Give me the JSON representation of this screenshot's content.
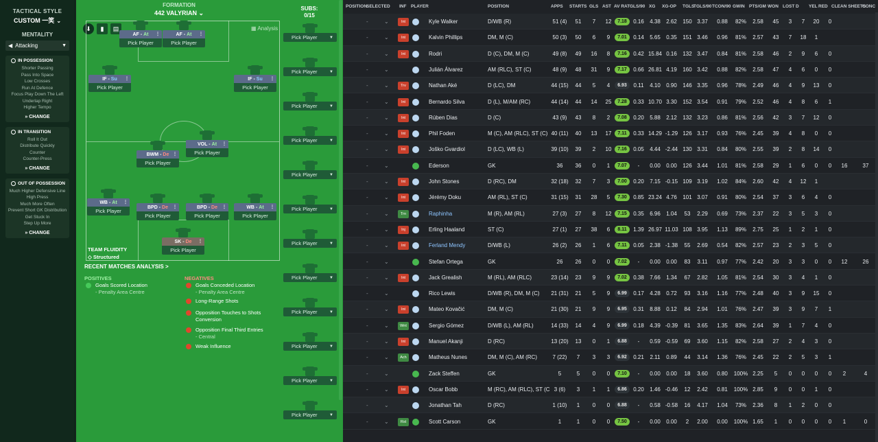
{
  "left": {
    "title": "TACTICAL STYLE",
    "style": "CUSTOM 一笑",
    "mentality_label": "MENTALITY",
    "mentality": "Attacking",
    "sections": [
      {
        "title": "IN POSSESSION",
        "items": [
          "Shorter Passing",
          "Pass Into Space",
          "Low Crosses",
          "Run At Defence",
          "Focus Play Down The Left",
          "Underlap Right",
          "Higher Tempo"
        ],
        "change": "CHANGE"
      },
      {
        "title": "IN TRANSITION",
        "items": [
          "Roll It Out",
          "Distribute Quickly",
          "Counter",
          "Counter-Press"
        ],
        "change": "CHANGE"
      },
      {
        "title": "OUT OF POSSESSION",
        "items": [
          "Much Higher Defensive Line",
          "High Press",
          "Much More Often",
          "Prevent Short GK Distribution",
          "Get Stuck In",
          "Step Up More"
        ],
        "change": "CHANGE"
      }
    ]
  },
  "pitch": {
    "formation_label": "FORMATION",
    "formation": "442 VALYRIAN",
    "subs_label": "SUBS:",
    "subs_count": "0/15",
    "analysis": "Analysis",
    "pick_label": "Pick Player",
    "fluidity_label": "TEAM FLUIDITY",
    "fluidity": "Structured",
    "recent": "RECENT MATCHES ANALYSIS >",
    "positives_h": "POSITIVES",
    "negatives_h": "NEGATIVES",
    "positives": [
      {
        "t": "Goals Scored Location",
        "d": "- Penalty Area Centre"
      }
    ],
    "negatives": [
      {
        "t": "Goals Conceded Location",
        "d": "- Penalty Area Centre"
      },
      {
        "t": "Long-Range Shots",
        "d": ""
      },
      {
        "t": "Opposition Touches to Shots Conversion",
        "d": ""
      },
      {
        "t": "Opposition Final Third Entries",
        "d": "- Central"
      },
      {
        "t": "Weak Influence",
        "d": ""
      }
    ],
    "roles": [
      {
        "r": "AF",
        "d": "At",
        "m": "at"
      },
      {
        "r": "AF",
        "d": "At",
        "m": "at"
      },
      {
        "r": "IF",
        "d": "Su",
        "m": "su"
      },
      {
        "r": "IF",
        "d": "Su",
        "m": "su"
      },
      {
        "r": "VOL",
        "d": "At",
        "m": "at"
      },
      {
        "r": "BWM",
        "d": "De",
        "m": "de"
      },
      {
        "r": "WB",
        "d": "At",
        "m": "at"
      },
      {
        "r": "BPD",
        "d": "De",
        "m": "de"
      },
      {
        "r": "BPD",
        "d": "De",
        "m": "de"
      },
      {
        "r": "WB",
        "d": "At",
        "m": "at"
      },
      {
        "r": "SK",
        "d": "De",
        "m": "de"
      }
    ]
  },
  "table": {
    "headers": [
      "POSITION",
      "SELECTED",
      "INF",
      "PLAYER",
      "POSITION",
      "APPS",
      "STARTS",
      "GLS",
      "AST",
      "AV RAT",
      "GLS/90",
      "XG",
      "XG-OP",
      "TGLS",
      "TGLS/90",
      "TCON/90",
      "GWIN",
      "PTS/GM",
      "WON",
      "LOST",
      "D",
      "YEL",
      "RED",
      "CLEAN SHEETS",
      "CONC"
    ],
    "rows": [
      {
        "inf": "Int",
        "ic": "red",
        "name": "Kyle Walker",
        "pos": "D/WB (R)",
        "apps": "51 (4)",
        "starts": "51",
        "gls": "7",
        "ast": "12",
        "rat": "7.18",
        "rc": "g",
        "g90": "0.16",
        "xg": "4.38",
        "xgop": "2.62",
        "tgls": "150",
        "tgls90": "3.37",
        "tcon": "0.88",
        "gwin": "82%",
        "pts": "2.58",
        "won": "45",
        "lost": "3",
        "d": "7",
        "yel": "20",
        "red": "0",
        "cs": "",
        "conc": ""
      },
      {
        "inf": "Int",
        "ic": "red",
        "name": "Kalvin Phillips",
        "pos": "DM, M (C)",
        "apps": "50 (3)",
        "starts": "50",
        "gls": "6",
        "ast": "9",
        "rat": "7.01",
        "rc": "g",
        "g90": "0.14",
        "xg": "5.65",
        "xgop": "0.35",
        "tgls": "151",
        "tgls90": "3.46",
        "tcon": "0.96",
        "gwin": "81%",
        "pts": "2.57",
        "won": "43",
        "lost": "7",
        "d": "18",
        "yel": "1",
        "red": "",
        "cs": "",
        "conc": ""
      },
      {
        "inf": "Int",
        "ic": "red",
        "name": "Rodri",
        "pos": "D (C), DM, M (C)",
        "apps": "49 (8)",
        "starts": "49",
        "gls": "16",
        "ast": "8",
        "rat": "7.16",
        "rc": "g",
        "g90": "0.42",
        "xg": "15.84",
        "xgop": "0.16",
        "tgls": "132",
        "tgls90": "3.47",
        "tcon": "0.84",
        "gwin": "81%",
        "pts": "2.58",
        "won": "46",
        "lost": "2",
        "d": "9",
        "yel": "6",
        "red": "0",
        "cs": "",
        "conc": ""
      },
      {
        "inf": "",
        "ic": "",
        "name": "Julián Álvarez",
        "pos": "AM (RLC), ST (C)",
        "apps": "48 (9)",
        "starts": "48",
        "gls": "31",
        "ast": "9",
        "rat": "7.17",
        "rc": "g",
        "g90": "0.66",
        "xg": "26.81",
        "xgop": "4.19",
        "tgls": "160",
        "tgls90": "3.42",
        "tcon": "0.88",
        "gwin": "82%",
        "pts": "2.58",
        "won": "47",
        "lost": "4",
        "d": "6",
        "yel": "0",
        "red": "0",
        "cs": "",
        "conc": ""
      },
      {
        "inf": "Trv",
        "ic": "red",
        "name": "Nathan Aké",
        "pos": "D (LC), DM",
        "apps": "44 (15)",
        "starts": "44",
        "gls": "5",
        "ast": "4",
        "rat": "6.93",
        "rc": "d",
        "g90": "0.11",
        "xg": "4.10",
        "xgop": "0.90",
        "tgls": "146",
        "tgls90": "3.35",
        "tcon": "0.96",
        "gwin": "78%",
        "pts": "2.49",
        "won": "46",
        "lost": "4",
        "d": "9",
        "yel": "13",
        "red": "0",
        "cs": "",
        "conc": ""
      },
      {
        "inf": "Int",
        "ic": "red",
        "name": "Bernardo Silva",
        "pos": "D (L), M/AM (RC)",
        "apps": "44 (14)",
        "starts": "44",
        "gls": "14",
        "ast": "25",
        "rat": "7.28",
        "rc": "g",
        "g90": "0.33",
        "xg": "10.70",
        "xgop": "3.30",
        "tgls": "152",
        "tgls90": "3.54",
        "tcon": "0.91",
        "gwin": "79%",
        "pts": "2.52",
        "won": "46",
        "lost": "4",
        "d": "8",
        "yel": "6",
        "red": "1",
        "cs": "",
        "conc": ""
      },
      {
        "inf": "Int",
        "ic": "red",
        "name": "Rúben Dias",
        "pos": "D (C)",
        "apps": "43 (9)",
        "starts": "43",
        "gls": "8",
        "ast": "2",
        "rat": "7.08",
        "rc": "g",
        "g90": "0.20",
        "xg": "5.88",
        "xgop": "2.12",
        "tgls": "132",
        "tgls90": "3.23",
        "tcon": "0.86",
        "gwin": "81%",
        "pts": "2.56",
        "won": "42",
        "lost": "3",
        "d": "7",
        "yel": "12",
        "red": "0",
        "cs": "",
        "conc": ""
      },
      {
        "inf": "Int",
        "ic": "red",
        "name": "Phil Foden",
        "pos": "M (C), AM (RLC), ST (C)",
        "apps": "40 (11)",
        "starts": "40",
        "gls": "13",
        "ast": "17",
        "rat": "7.11",
        "rc": "g",
        "g90": "0.33",
        "xg": "14.29",
        "xgop": "-1.29",
        "tgls": "126",
        "tgls90": "3.17",
        "tcon": "0.93",
        "gwin": "76%",
        "pts": "2.45",
        "won": "39",
        "lost": "4",
        "d": "8",
        "yel": "0",
        "red": "0",
        "cs": "",
        "conc": ""
      },
      {
        "inf": "Int",
        "ic": "red",
        "name": "Joško Gvardiol",
        "pos": "D (LC), WB (L)",
        "apps": "39 (10)",
        "starts": "39",
        "gls": "2",
        "ast": "10",
        "rat": "7.16",
        "rc": "g",
        "g90": "0.05",
        "xg": "4.44",
        "xgop": "-2.44",
        "tgls": "130",
        "tgls90": "3.31",
        "tcon": "0.84",
        "gwin": "80%",
        "pts": "2.55",
        "won": "39",
        "lost": "2",
        "d": "8",
        "yel": "14",
        "red": "0",
        "cs": "",
        "conc": ""
      },
      {
        "inf": "",
        "ic": "",
        "gk": true,
        "name": "Ederson",
        "pos": "GK",
        "apps": "36",
        "starts": "36",
        "gls": "0",
        "ast": "1",
        "rat": "7.07",
        "rc": "g",
        "g90": "-",
        "xg": "0.00",
        "xgop": "0.00",
        "tgls": "126",
        "tgls90": "3.44",
        "tcon": "1.01",
        "gwin": "81%",
        "pts": "2.58",
        "won": "29",
        "lost": "1",
        "d": "6",
        "yel": "0",
        "red": "0",
        "cs": "16",
        "conc": "37"
      },
      {
        "inf": "Int",
        "ic": "red",
        "name": "John Stones",
        "pos": "D (RC), DM",
        "apps": "32 (18)",
        "starts": "32",
        "gls": "7",
        "ast": "3",
        "rat": "7.00",
        "rc": "g",
        "g90": "0.20",
        "xg": "7.15",
        "xgop": "-0.15",
        "tgls": "109",
        "tgls90": "3.19",
        "tcon": "1.02",
        "gwin": "84%",
        "pts": "2.60",
        "won": "42",
        "lost": "4",
        "d": "12",
        "yel": "1",
        "red": "",
        "cs": "",
        "conc": ""
      },
      {
        "inf": "Int",
        "ic": "red",
        "name": "Jérémy Doku",
        "pos": "AM (RL), ST (C)",
        "apps": "31 (15)",
        "starts": "31",
        "gls": "28",
        "ast": "5",
        "rat": "7.30",
        "rc": "g",
        "g90": "0.85",
        "xg": "23.24",
        "xgop": "4.76",
        "tgls": "101",
        "tgls90": "3.07",
        "tcon": "0.91",
        "gwin": "80%",
        "pts": "2.54",
        "won": "37",
        "lost": "3",
        "d": "6",
        "yel": "4",
        "red": "0",
        "cs": "",
        "conc": ""
      },
      {
        "inf": "Trn",
        "ic": "green",
        "link": true,
        "name": "Raphinha",
        "pos": "M (R), AM (RL)",
        "apps": "27 (3)",
        "starts": "27",
        "gls": "8",
        "ast": "12",
        "rat": "7.15",
        "rc": "g",
        "g90": "0.35",
        "xg": "6.96",
        "xgop": "1.04",
        "tgls": "53",
        "tgls90": "2.29",
        "tcon": "0.69",
        "gwin": "73%",
        "pts": "2.37",
        "won": "22",
        "lost": "3",
        "d": "5",
        "yel": "3",
        "red": "0",
        "cs": "",
        "conc": ""
      },
      {
        "inf": "Inj",
        "ic": "red",
        "name": "Erling Haaland",
        "pos": "ST (C)",
        "apps": "27 (1)",
        "starts": "27",
        "gls": "38",
        "ast": "6",
        "rat": "8.11",
        "rc": "g",
        "g90": "1.39",
        "xg": "26.97",
        "xgop": "11.03",
        "tgls": "108",
        "tgls90": "3.95",
        "tcon": "1.13",
        "gwin": "89%",
        "pts": "2.75",
        "won": "25",
        "lost": "1",
        "d": "2",
        "yel": "1",
        "red": "0",
        "cs": "",
        "conc": ""
      },
      {
        "inf": "Int",
        "ic": "red",
        "link": true,
        "name": "Ferland Mendy",
        "pos": "D/WB (L)",
        "apps": "26 (2)",
        "starts": "26",
        "gls": "1",
        "ast": "6",
        "rat": "7.11",
        "rc": "g",
        "g90": "0.05",
        "xg": "2.38",
        "xgop": "-1.38",
        "tgls": "55",
        "tgls90": "2.69",
        "tcon": "0.54",
        "gwin": "82%",
        "pts": "2.57",
        "won": "23",
        "lost": "2",
        "d": "3",
        "yel": "5",
        "red": "0",
        "cs": "",
        "conc": ""
      },
      {
        "inf": "",
        "ic": "",
        "gk": true,
        "name": "Stefan Ortega",
        "pos": "GK",
        "apps": "26",
        "starts": "26",
        "gls": "0",
        "ast": "0",
        "rat": "7.02",
        "rc": "g",
        "g90": "-",
        "xg": "0.00",
        "xgop": "0.00",
        "tgls": "83",
        "tgls90": "3.11",
        "tcon": "0.97",
        "gwin": "77%",
        "pts": "2.42",
        "won": "20",
        "lost": "3",
        "d": "3",
        "yel": "0",
        "red": "0",
        "cs": "12",
        "conc": "26"
      },
      {
        "inf": "Int",
        "ic": "red",
        "name": "Jack Grealish",
        "pos": "M (RL), AM (RLC)",
        "apps": "23 (14)",
        "starts": "23",
        "gls": "9",
        "ast": "9",
        "rat": "7.02",
        "rc": "g",
        "g90": "0.38",
        "xg": "7.66",
        "xgop": "1.34",
        "tgls": "67",
        "tgls90": "2.82",
        "tcon": "1.05",
        "gwin": "81%",
        "pts": "2.54",
        "won": "30",
        "lost": "3",
        "d": "4",
        "yel": "1",
        "red": "0",
        "cs": "",
        "conc": ""
      },
      {
        "inf": "",
        "ic": "",
        "name": "Rico Lewis",
        "pos": "D/WB (R), DM, M (C)",
        "apps": "21 (31)",
        "starts": "21",
        "gls": "5",
        "ast": "9",
        "rat": "6.99",
        "rc": "d",
        "g90": "0.17",
        "xg": "4.28",
        "xgop": "0.72",
        "tgls": "93",
        "tgls90": "3.16",
        "tcon": "1.16",
        "gwin": "77%",
        "pts": "2.48",
        "won": "40",
        "lost": "3",
        "d": "9",
        "yel": "15",
        "red": "0",
        "cs": "",
        "conc": ""
      },
      {
        "inf": "Int",
        "ic": "red",
        "name": "Mateo Kovačić",
        "pos": "DM, M (C)",
        "apps": "21 (30)",
        "starts": "21",
        "gls": "9",
        "ast": "9",
        "rat": "6.95",
        "rc": "d",
        "g90": "0.31",
        "xg": "8.88",
        "xgop": "0.12",
        "tgls": "84",
        "tgls90": "2.94",
        "tcon": "1.01",
        "gwin": "76%",
        "pts": "2.47",
        "won": "39",
        "lost": "3",
        "d": "9",
        "yel": "7",
        "red": "1",
        "cs": "",
        "conc": ""
      },
      {
        "inf": "Wnt",
        "ic": "green",
        "name": "Sergio Gómez",
        "pos": "D/WB (L), AM (RL)",
        "apps": "14 (33)",
        "starts": "14",
        "gls": "4",
        "ast": "9",
        "rat": "6.99",
        "rc": "d",
        "g90": "0.18",
        "xg": "4.39",
        "xgop": "-0.39",
        "tgls": "81",
        "tgls90": "3.65",
        "tcon": "1.35",
        "gwin": "83%",
        "pts": "2.64",
        "won": "39",
        "lost": "1",
        "d": "7",
        "yel": "4",
        "red": "0",
        "cs": "",
        "conc": ""
      },
      {
        "inf": "Int",
        "ic": "red",
        "name": "Manuel Akanji",
        "pos": "D (RC)",
        "apps": "13 (20)",
        "starts": "13",
        "gls": "0",
        "ast": "1",
        "rat": "6.88",
        "rc": "d",
        "g90": "-",
        "xg": "0.59",
        "xgop": "-0.59",
        "tgls": "69",
        "tgls90": "3.60",
        "tcon": "1.15",
        "gwin": "82%",
        "pts": "2.58",
        "won": "27",
        "lost": "2",
        "d": "4",
        "yel": "3",
        "red": "0",
        "cs": "",
        "conc": ""
      },
      {
        "inf": "Ach",
        "ic": "green",
        "name": "Matheus Nunes",
        "pos": "DM, M (C), AM (RC)",
        "apps": "7 (22)",
        "starts": "7",
        "gls": "3",
        "ast": "3",
        "rat": "6.92",
        "rc": "d",
        "g90": "0.21",
        "xg": "2.11",
        "xgop": "0.89",
        "tgls": "44",
        "tgls90": "3.14",
        "tcon": "1.36",
        "gwin": "76%",
        "pts": "2.45",
        "won": "22",
        "lost": "2",
        "d": "5",
        "yel": "3",
        "red": "1",
        "cs": "",
        "conc": ""
      },
      {
        "inf": "",
        "ic": "",
        "gk": true,
        "name": "Zack Steffen",
        "pos": "GK",
        "apps": "5",
        "starts": "5",
        "gls": "0",
        "ast": "0",
        "rat": "7.10",
        "rc": "g",
        "g90": "-",
        "xg": "0.00",
        "xgop": "0.00",
        "tgls": "18",
        "tgls90": "3.60",
        "tcon": "0.80",
        "gwin": "100%",
        "pts": "2.25",
        "won": "5",
        "lost": "0",
        "d": "0",
        "yel": "0",
        "red": "0",
        "cs": "2",
        "conc": "4"
      },
      {
        "inf": "Int",
        "ic": "red",
        "name": "Oscar Bobb",
        "pos": "M (RC), AM (RLC), ST (C)",
        "apps": "3 (6)",
        "starts": "3",
        "gls": "1",
        "ast": "1",
        "rat": "6.86",
        "rc": "d",
        "g90": "0.20",
        "xg": "1.46",
        "xgop": "-0.46",
        "tgls": "12",
        "tgls90": "2.42",
        "tcon": "0.81",
        "gwin": "100%",
        "pts": "2.85",
        "won": "9",
        "lost": "0",
        "d": "0",
        "yel": "1",
        "red": "0",
        "cs": "",
        "conc": ""
      },
      {
        "inf": "",
        "ic": "",
        "name": "Jonathan Tah",
        "pos": "D (RC)",
        "apps": "1 (10)",
        "starts": "1",
        "gls": "0",
        "ast": "0",
        "rat": "6.88",
        "rc": "d",
        "g90": "-",
        "xg": "0.58",
        "xgop": "-0.58",
        "tgls": "16",
        "tgls90": "4.17",
        "tcon": "1.04",
        "gwin": "73%",
        "pts": "2.36",
        "won": "8",
        "lost": "1",
        "d": "2",
        "yel": "0",
        "red": "0",
        "cs": "",
        "conc": ""
      },
      {
        "inf": "Rst",
        "ic": "green",
        "gk": true,
        "name": "Scott Carson",
        "pos": "GK",
        "apps": "1",
        "starts": "1",
        "gls": "0",
        "ast": "0",
        "rat": "7.50",
        "rc": "g",
        "g90": "-",
        "xg": "0.00",
        "xgop": "0.00",
        "tgls": "2",
        "tgls90": "2.00",
        "tcon": "0.00",
        "gwin": "100%",
        "pts": "1.65",
        "won": "1",
        "lost": "0",
        "d": "0",
        "yel": "0",
        "red": "0",
        "cs": "1",
        "conc": "0"
      }
    ]
  }
}
